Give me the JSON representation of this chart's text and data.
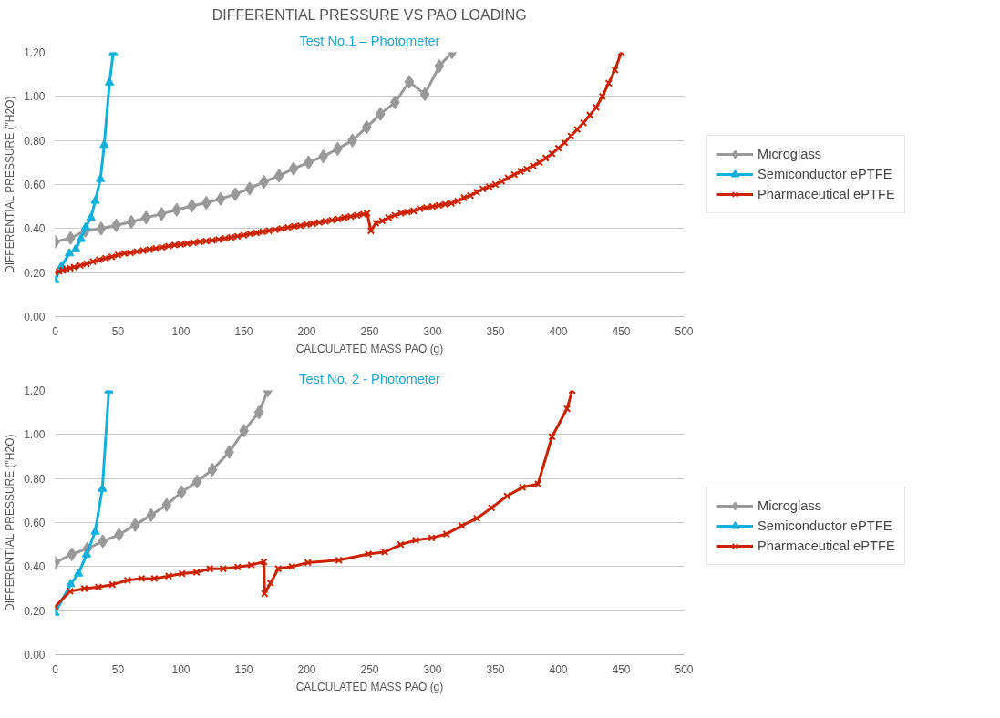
{
  "chart_data": [
    {
      "type": "line",
      "title": "DIFFERENTIAL PRESSURE VS PAO LOADING",
      "subtitle": "Test No.1 – Photometer",
      "xlabel": "CALCULATED MASS PAO (g)",
      "ylabel": "DIFFERENTIAL PRESSURE (\"H2O)",
      "xlim": [
        0,
        500
      ],
      "ylim": [
        0,
        1.2
      ],
      "xticks": [
        0,
        50,
        100,
        150,
        200,
        250,
        300,
        350,
        400,
        450,
        500
      ],
      "yticks": [
        {
          "value": 0,
          "label": "0.00"
        },
        {
          "value": 0.2,
          "label": "0.20"
        },
        {
          "value": 0.4,
          "label": "0.40"
        },
        {
          "value": 0.6,
          "label": "0.60"
        },
        {
          "value": 0.8,
          "label": "0.80"
        },
        {
          "value": 1.0,
          "label": "1.00"
        },
        {
          "value": 1.2,
          "label": "1.20"
        }
      ],
      "grid": "y",
      "legend": "right",
      "line_style": "solid",
      "series": [
        {
          "name": "Microglass",
          "color": "#999999",
          "marker": "diamond",
          "x": [
            0,
            12.3,
            24,
            36.6,
            48.5,
            60.6,
            72.3,
            84.6,
            96.6,
            108.7,
            120.2,
            131.5,
            143.2,
            154.6,
            166,
            178,
            189.5,
            201.4,
            213.1,
            224.6,
            236.3,
            247.7,
            258.5,
            270.2,
            281.5,
            293.9,
            305.4,
            315.5
          ],
          "values": [
            0.34,
            0.357,
            0.39,
            0.4,
            0.415,
            0.43,
            0.45,
            0.466,
            0.485,
            0.503,
            0.517,
            0.535,
            0.556,
            0.582,
            0.612,
            0.64,
            0.672,
            0.7,
            0.728,
            0.762,
            0.8,
            0.86,
            0.92,
            0.973,
            1.066,
            1.01,
            1.138,
            1.2
          ]
        },
        {
          "name": "Semiconductor ePTFE",
          "color": "#12b0dc",
          "marker": "triangle",
          "x": [
            0,
            5.1,
            11.3,
            16.4,
            20.5,
            24.2,
            28.4,
            31.9,
            36,
            39,
            43.2,
            46.2
          ],
          "values": [
            0.165,
            0.23,
            0.287,
            0.306,
            0.353,
            0.406,
            0.45,
            0.526,
            0.625,
            0.78,
            1.063,
            1.2
          ]
        },
        {
          "name": "Pharmaceutical ePTFE",
          "color": "#cc2200",
          "marker": "cross",
          "x": [
            0,
            3,
            6,
            9,
            12,
            15,
            20,
            25,
            30,
            35,
            40,
            45,
            50,
            55,
            60,
            65,
            70,
            75,
            80,
            85,
            90,
            95,
            100,
            105,
            110,
            115,
            120,
            125,
            130,
            135,
            140,
            145,
            150,
            155,
            160,
            165,
            170,
            175,
            180,
            185,
            190,
            195,
            200,
            205,
            210,
            215,
            220,
            225,
            230,
            235,
            240,
            245,
            248,
            251,
            255,
            260,
            265,
            270,
            275,
            280,
            285,
            290,
            295,
            300,
            305,
            310,
            315,
            320,
            325,
            330,
            335,
            340,
            345,
            350,
            355,
            360,
            365,
            370,
            375,
            380,
            385,
            390,
            395,
            400,
            405,
            410,
            415,
            420,
            425,
            430,
            435,
            440,
            445,
            450
          ],
          "values": [
            0.2,
            0.205,
            0.21,
            0.215,
            0.22,
            0.225,
            0.232,
            0.24,
            0.25,
            0.258,
            0.265,
            0.272,
            0.28,
            0.287,
            0.29,
            0.295,
            0.3,
            0.305,
            0.31,
            0.315,
            0.32,
            0.325,
            0.328,
            0.332,
            0.336,
            0.34,
            0.343,
            0.346,
            0.35,
            0.355,
            0.36,
            0.365,
            0.37,
            0.376,
            0.38,
            0.385,
            0.39,
            0.395,
            0.4,
            0.405,
            0.41,
            0.413,
            0.418,
            0.423,
            0.428,
            0.433,
            0.438,
            0.443,
            0.45,
            0.455,
            0.46,
            0.465,
            0.47,
            0.39,
            0.425,
            0.435,
            0.45,
            0.46,
            0.47,
            0.475,
            0.48,
            0.49,
            0.495,
            0.5,
            0.505,
            0.51,
            0.515,
            0.525,
            0.54,
            0.55,
            0.565,
            0.58,
            0.59,
            0.6,
            0.615,
            0.63,
            0.645,
            0.66,
            0.67,
            0.685,
            0.7,
            0.72,
            0.74,
            0.765,
            0.79,
            0.82,
            0.85,
            0.88,
            0.915,
            0.95,
            1.0,
            1.06,
            1.12,
            1.2
          ]
        }
      ]
    },
    {
      "type": "line",
      "subtitle": "Test No. 2 - Photometer",
      "xlabel": "CALCULATED MASS PAO (g)",
      "ylabel": "DIFFERENTIAL PRESSURE (\"H2O)",
      "xlim": [
        0,
        500
      ],
      "ylim": [
        0,
        1.2
      ],
      "xticks": [
        0,
        50,
        100,
        150,
        200,
        250,
        300,
        350,
        400,
        450,
        500
      ],
      "yticks": [
        {
          "value": 0,
          "label": "0.00"
        },
        {
          "value": 0.2,
          "label": "0.20"
        },
        {
          "value": 0.4,
          "label": "0.40"
        },
        {
          "value": 0.6,
          "label": "0.60"
        },
        {
          "value": 0.8,
          "label": "0.80"
        },
        {
          "value": 1.0,
          "label": "1.00"
        },
        {
          "value": 1.2,
          "label": "1.20"
        }
      ],
      "grid": "y",
      "legend": "right",
      "line_style": "solid",
      "series": [
        {
          "name": "Microglass",
          "color": "#999999",
          "marker": "diamond",
          "x": [
            0,
            13.3,
            25.6,
            37.9,
            50.8,
            63.6,
            76.3,
            88.6,
            100.5,
            112.8,
            125,
            138.4,
            150.1,
            162,
            169
          ],
          "values": [
            0.418,
            0.456,
            0.482,
            0.515,
            0.545,
            0.589,
            0.634,
            0.68,
            0.738,
            0.786,
            0.84,
            0.92,
            1.017,
            1.1,
            1.2
          ]
        },
        {
          "name": "Semiconductor ePTFE",
          "color": "#12b0dc",
          "marker": "triangle",
          "x": [
            0,
            12.3,
            18.5,
            25,
            31.8,
            37.5,
            42.7
          ],
          "values": [
            0.19,
            0.32,
            0.368,
            0.455,
            0.558,
            0.753,
            1.2
          ]
        },
        {
          "name": "Pharmaceutical ePTFE",
          "color": "#cc2200",
          "marker": "cross",
          "x": [
            0,
            11.9,
            23.2,
            34.4,
            45.5,
            57.4,
            68.7,
            78.9,
            90.2,
            100.9,
            112.4,
            123,
            133.7,
            145.1,
            155.8,
            166,
            166.5,
            171.2,
            177.3,
            188.2,
            200.9,
            225.5,
            249,
            262,
            274.7,
            286.6,
            299.3,
            311,
            323.3,
            335.2,
            346.9,
            359.2,
            371.5,
            383.8,
            395,
            406.9,
            411
          ],
          "values": [
            0.218,
            0.288,
            0.3,
            0.307,
            0.318,
            0.338,
            0.346,
            0.346,
            0.357,
            0.368,
            0.374,
            0.39,
            0.39,
            0.398,
            0.407,
            0.422,
            0.277,
            0.325,
            0.39,
            0.4,
            0.418,
            0.429,
            0.457,
            0.466,
            0.5,
            0.52,
            0.53,
            0.548,
            0.586,
            0.619,
            0.667,
            0.72,
            0.76,
            0.775,
            0.99,
            1.117,
            1.2
          ]
        }
      ]
    }
  ]
}
